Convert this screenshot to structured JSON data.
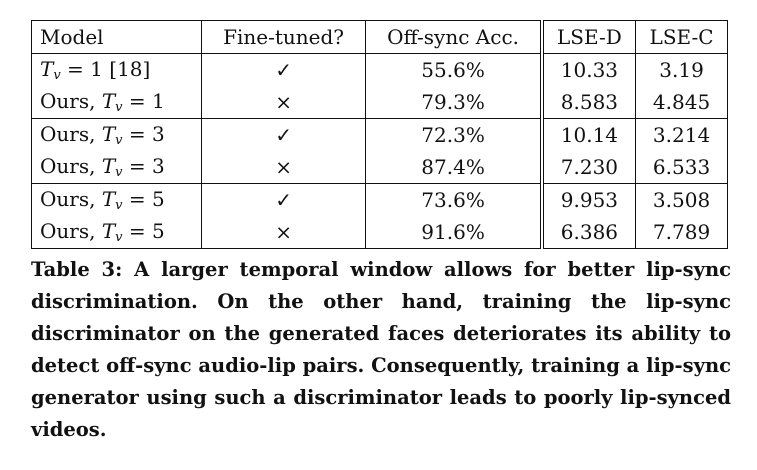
{
  "table": {
    "headers": {
      "model": "Model",
      "fine_tuned": "Fine-tuned?",
      "off_sync_acc": "Off-sync Acc.",
      "lse_d": "LSE-D",
      "lse_c": "LSE-C"
    },
    "rows": [
      {
        "model_prefix": "",
        "model_var": "T",
        "model_sub": "v",
        "model_suffix": " = 1 ",
        "model_ref": "[18]",
        "fine_tuned": "✓",
        "off_sync_acc": "55.6%",
        "lse_d": "10.33",
        "lse_c": "3.19",
        "bold": false
      },
      {
        "model_prefix": "Ours, ",
        "model_var": "T",
        "model_sub": "v",
        "model_suffix": " = 1",
        "model_ref": "",
        "fine_tuned": "×",
        "off_sync_acc": "79.3%",
        "lse_d": "8.583",
        "lse_c": "4.845",
        "bold": false
      },
      {
        "model_prefix": "Ours, ",
        "model_var": "T",
        "model_sub": "v",
        "model_suffix": " = 3",
        "model_ref": "",
        "fine_tuned": "✓",
        "off_sync_acc": "72.3%",
        "lse_d": "10.14",
        "lse_c": "3.214",
        "bold": false
      },
      {
        "model_prefix": "Ours, ",
        "model_var": "T",
        "model_sub": "v",
        "model_suffix": " = 3",
        "model_ref": "",
        "fine_tuned": "×",
        "off_sync_acc": "87.4%",
        "lse_d": "7.230",
        "lse_c": "6.533",
        "bold": false
      },
      {
        "model_prefix": "Ours, ",
        "model_var": "T",
        "model_sub": "v",
        "model_suffix": " = 5",
        "model_ref": "",
        "fine_tuned": "✓",
        "off_sync_acc": "73.6%",
        "lse_d": "9.953",
        "lse_c": "3.508",
        "bold": false
      },
      {
        "model_prefix": "Ours, ",
        "model_var": "T",
        "model_sub": "v",
        "model_suffix": " = 5",
        "model_ref": "",
        "fine_tuned": "×",
        "off_sync_acc": "91.6%",
        "lse_d": "6.386",
        "lse_c": "7.789",
        "bold": true
      }
    ]
  },
  "caption": {
    "label": "Table 3:",
    "text": "A larger temporal window allows for better lip-sync discrimination. On the other hand, training the lip-sync discriminator on the generated faces deteriorates its ability to detect off-sync audio-lip pairs. Consequently, training a lip-sync generator using such a discriminator leads to poorly lip-synced videos."
  }
}
